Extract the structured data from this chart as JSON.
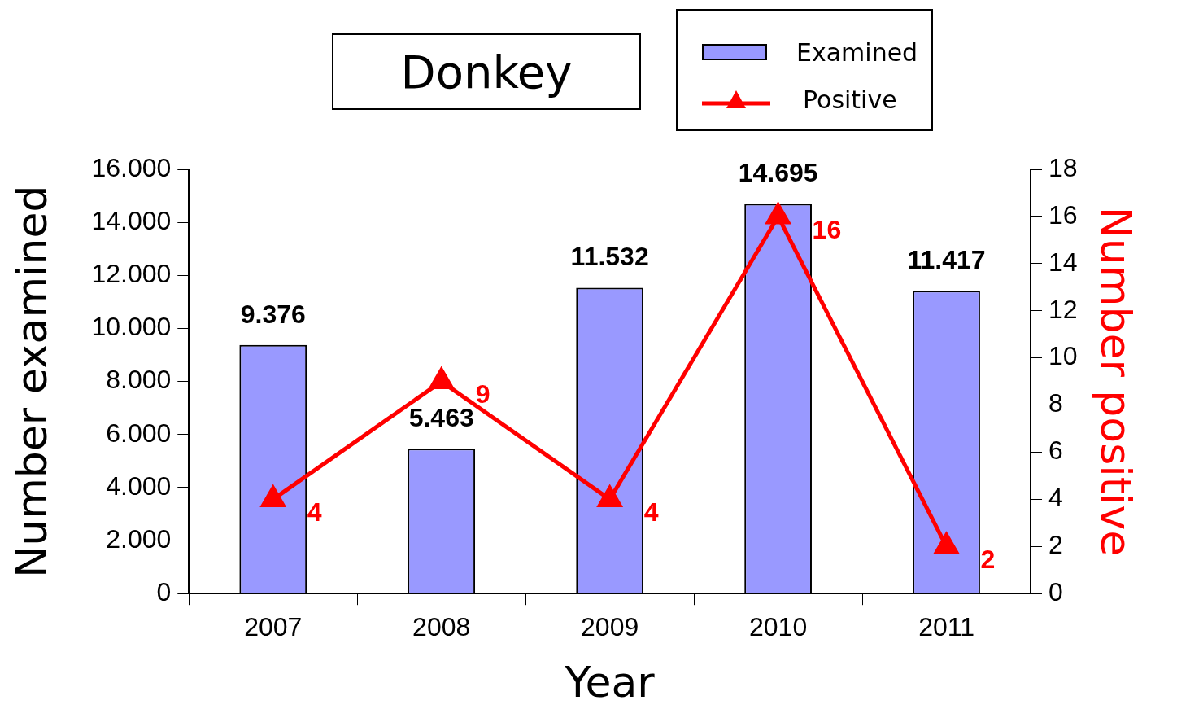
{
  "chart_data": {
    "type": "bar",
    "title": "Donkey",
    "xlabel": "Year",
    "ylabel": "Number examined",
    "y2label": "Number positive",
    "categories": [
      "2007",
      "2008",
      "2009",
      "2010",
      "2011"
    ],
    "series": [
      {
        "name": "Examined",
        "color": "#9999ff",
        "values": [
          9376,
          5463,
          11532,
          14695,
          11417
        ],
        "value_labels": [
          "9.376",
          "5.463",
          "11.532",
          "14.695",
          "11.417"
        ]
      },
      {
        "name": "Positive",
        "type": "line",
        "axis": "y2",
        "color": "#ff0000",
        "marker": "triangle",
        "values": [
          4,
          9,
          4,
          16,
          2
        ],
        "value_labels": [
          "4",
          "9",
          "4",
          "16",
          "2"
        ]
      }
    ],
    "ylim": [
      0,
      16000
    ],
    "yticks": [
      0,
      {
        "value": 2000,
        "label": "2.000"
      },
      {
        "value": 4000,
        "label": "4.000"
      },
      {
        "value": 6000,
        "label": "6.000"
      },
      {
        "value": 8000,
        "label": "8.000"
      },
      {
        "value": 10000,
        "label": "10.000"
      },
      {
        "value": 12000,
        "label": "12.000"
      },
      {
        "value": 14000,
        "label": "14.000"
      },
      {
        "value": 16000,
        "label": "16.000"
      }
    ],
    "y2lim": [
      0,
      18
    ],
    "y2ticks": [
      0,
      2,
      4,
      6,
      8,
      10,
      12,
      14,
      16,
      18
    ],
    "grid": false,
    "legend": "top right"
  }
}
